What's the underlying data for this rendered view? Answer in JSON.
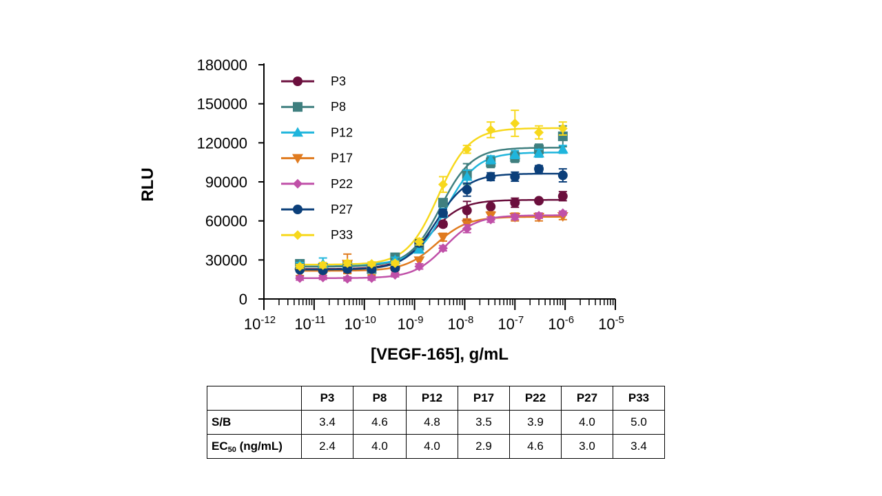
{
  "chart_data": {
    "type": "scatter",
    "subtype": "dose-response curves with error bars",
    "xlabel": "[VEGF-165], g/mL",
    "ylabel": "RLU",
    "xscale": "log",
    "xlim": [
      1e-12,
      1e-05
    ],
    "ylim": [
      0,
      180000
    ],
    "x_ticks": [
      {
        "base": "10",
        "exp": "-12"
      },
      {
        "base": "10",
        "exp": "-11"
      },
      {
        "base": "10",
        "exp": "-10"
      },
      {
        "base": "10",
        "exp": "-9"
      },
      {
        "base": "10",
        "exp": "-8"
      },
      {
        "base": "10",
        "exp": "-7"
      },
      {
        "base": "10",
        "exp": "-6"
      },
      {
        "base": "10",
        "exp": "-5"
      }
    ],
    "y_ticks": [
      "0",
      "30000",
      "60000",
      "90000",
      "120000",
      "150000",
      "180000"
    ],
    "legend_position": "top-left inside plot",
    "x": [
      5.2e-12,
      1.5e-11,
      4.6e-11,
      1.4e-10,
      4.1e-10,
      1.24e-09,
      3.7e-09,
      1.11e-08,
      3.3e-08,
      1e-07,
      3e-07,
      9e-07
    ],
    "series": [
      {
        "name": "P3",
        "color": "#6b0f3d",
        "marker": "circle",
        "values": [
          23000,
          23000,
          23000,
          23000,
          23500,
          43000,
          57500,
          68000,
          71000,
          74000,
          75500,
          79000
        ],
        "errors": [
          1500,
          2000,
          3000,
          1500,
          1500,
          3000,
          2000,
          7000,
          4000,
          3500,
          1500,
          3500
        ]
      },
      {
        "name": "P8",
        "color": "#3f7f7f",
        "marker": "square",
        "values": [
          27000,
          24000,
          25500,
          23000,
          32000,
          41000,
          74000,
          96000,
          105000,
          109000,
          115000,
          125000
        ],
        "errors": [
          1500,
          2000,
          2000,
          1500,
          2000,
          2500,
          3000,
          8000,
          4000,
          4000,
          4000,
          8000
        ]
      },
      {
        "name": "P12",
        "color": "#1fb5dc",
        "marker": "triangle-up",
        "values": [
          26000,
          27000,
          26500,
          25500,
          30000,
          38000,
          66000,
          94000,
          107000,
          111000,
          112000,
          115000
        ],
        "errors": [
          2000,
          4500,
          2500,
          2000,
          2000,
          2500,
          3500,
          5000,
          3000,
          3000,
          3000,
          3000
        ]
      },
      {
        "name": "P17",
        "color": "#e07b1f",
        "marker": "triangle-down",
        "values": [
          20000,
          18500,
          27000,
          21000,
          21500,
          29500,
          47500,
          57500,
          64000,
          63000,
          63000,
          63500
        ],
        "errors": [
          2000,
          2000,
          7500,
          2500,
          2000,
          2500,
          3000,
          4000,
          3000,
          3000,
          3000,
          2500
        ]
      },
      {
        "name": "P22",
        "color": "#c050a8",
        "marker": "diamond",
        "values": [
          16000,
          16500,
          15500,
          16000,
          18500,
          25000,
          39000,
          54000,
          61000,
          63000,
          64000,
          66000
        ],
        "errors": [
          1500,
          1500,
          1500,
          1500,
          1500,
          2000,
          2000,
          3000,
          2000,
          2000,
          2000,
          1500
        ]
      },
      {
        "name": "P27",
        "color": "#0b3f7a",
        "marker": "circle",
        "values": [
          22500,
          22000,
          23000,
          23000,
          24000,
          43000,
          66000,
          84000,
          94000,
          94000,
          100000,
          95000
        ],
        "errors": [
          1500,
          1500,
          1500,
          1500,
          1500,
          2500,
          3000,
          5000,
          3000,
          3500,
          2500,
          5000
        ]
      },
      {
        "name": "P33",
        "color": "#f7d81c",
        "marker": "diamond",
        "values": [
          25000,
          26000,
          27500,
          27000,
          27500,
          44000,
          88000,
          115000,
          130000,
          135000,
          128000,
          131000
        ],
        "errors": [
          1500,
          2000,
          2000,
          1500,
          1500,
          2500,
          6000,
          3000,
          6000,
          10000,
          5000,
          5000
        ]
      }
    ]
  },
  "table": {
    "headers": [
      "",
      "P3",
      "P8",
      "P12",
      "P17",
      "P22",
      "P27",
      "P33"
    ],
    "rows": [
      {
        "label": "S/B",
        "label_sub": "",
        "label_suffix": "",
        "values": [
          "3.4",
          "4.6",
          "4.8",
          "3.5",
          "3.9",
          "4.0",
          "5.0"
        ]
      },
      {
        "label": "EC",
        "label_sub": "50",
        "label_suffix": " (ng/mL)",
        "values": [
          "2.4",
          "4.0",
          "4.0",
          "2.9",
          "4.6",
          "3.0",
          "3.4"
        ]
      }
    ]
  }
}
